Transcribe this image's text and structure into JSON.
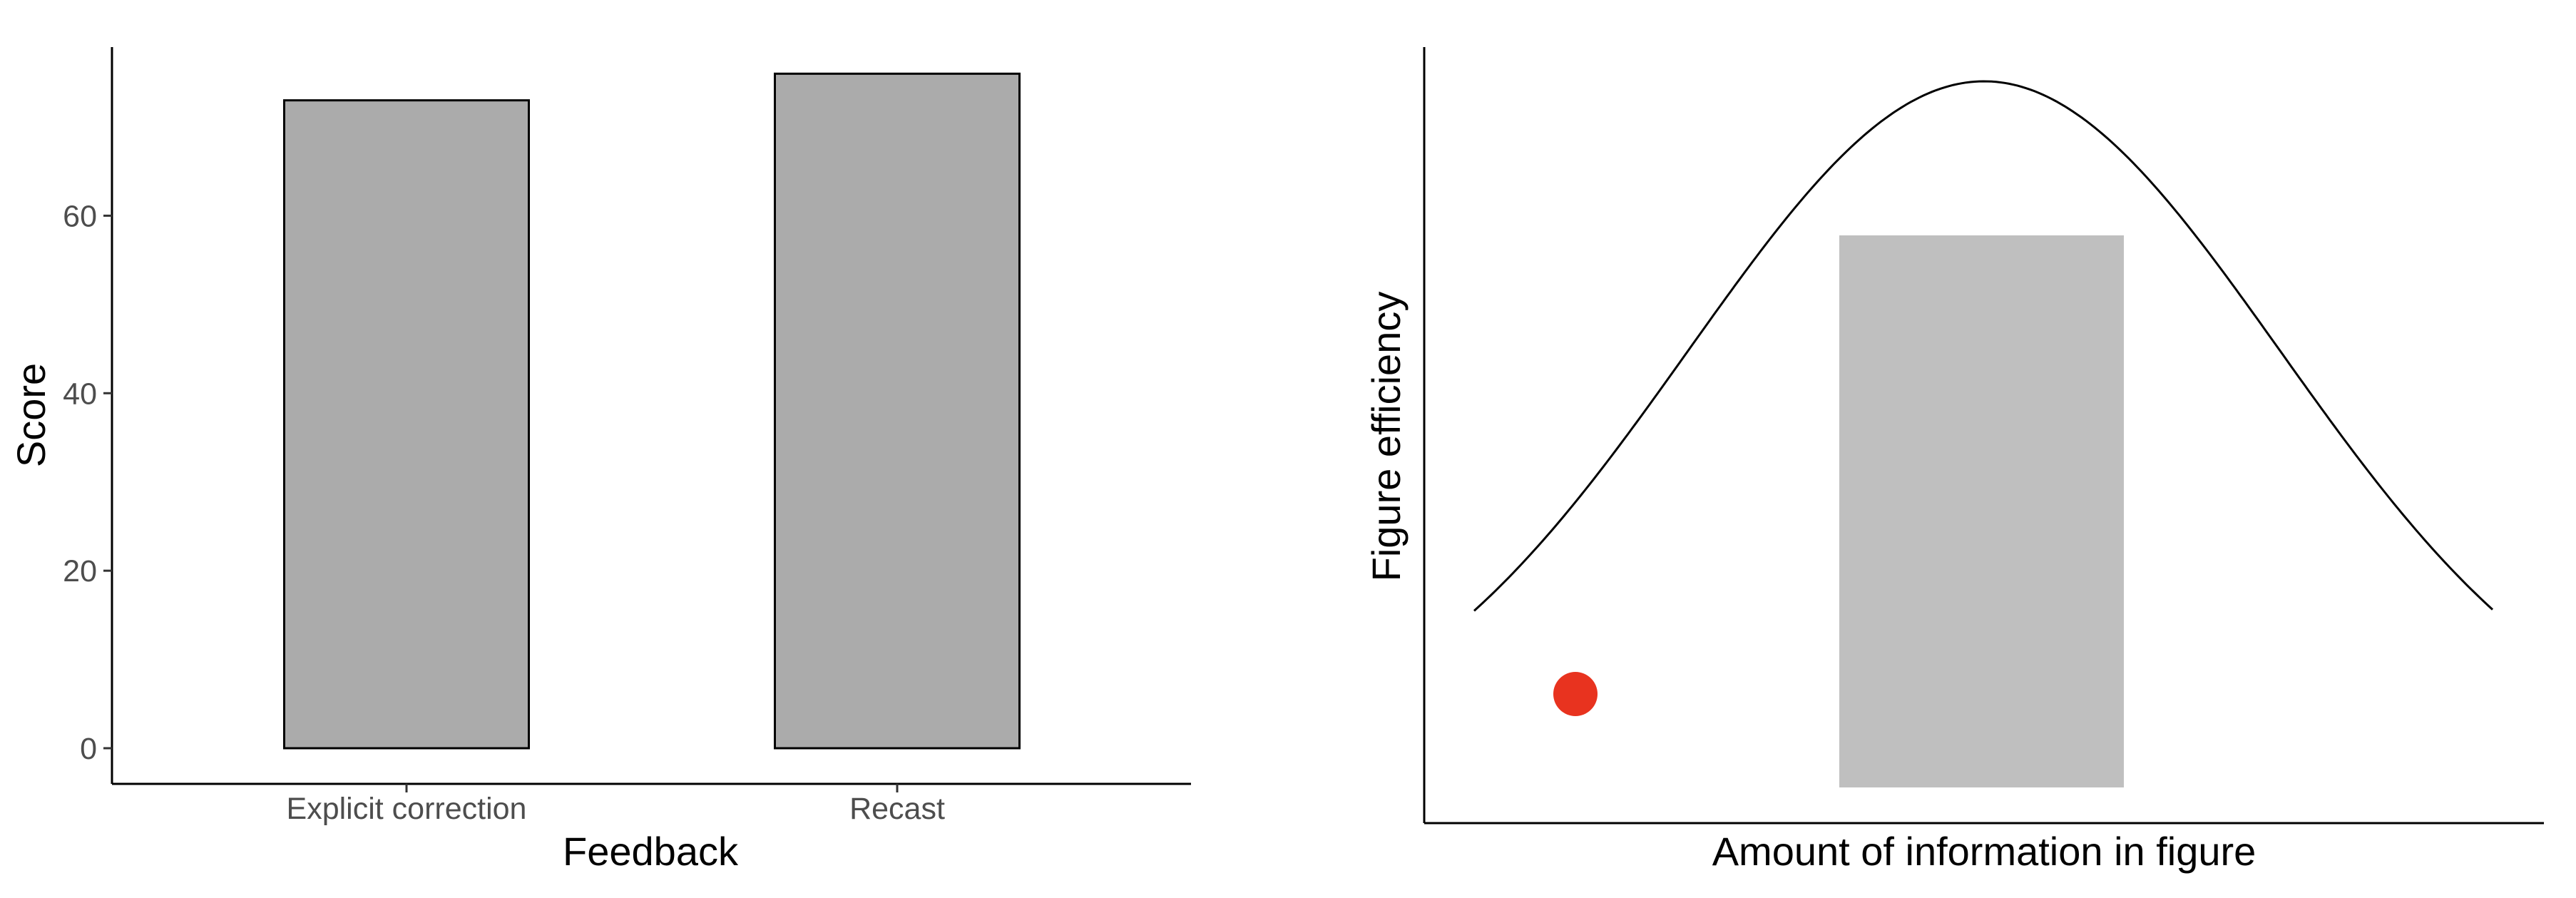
{
  "chart_data": [
    {
      "type": "bar",
      "categories": [
        "Explicit correction",
        "Recast"
      ],
      "values": [
        73,
        76
      ],
      "ylim": [
        0,
        79
      ],
      "yticks": [
        0,
        20,
        40,
        60
      ],
      "xlabel": "Feedback",
      "ylabel": "Score",
      "grid": false,
      "bar_fill": "#ababab",
      "bar_stroke": "#000000"
    },
    {
      "type": "line",
      "xlabel": "Amount of information in figure",
      "ylabel": "Figure efficiency",
      "curve": "bell-shaped",
      "shaded_region": "middle band under the peak",
      "highlight_point": "on the rising left tail",
      "curve_color": "#000000",
      "shade_color": "#bfbfbf",
      "point_color": "#e8331f",
      "axis_ticks": false,
      "grid": false
    }
  ]
}
